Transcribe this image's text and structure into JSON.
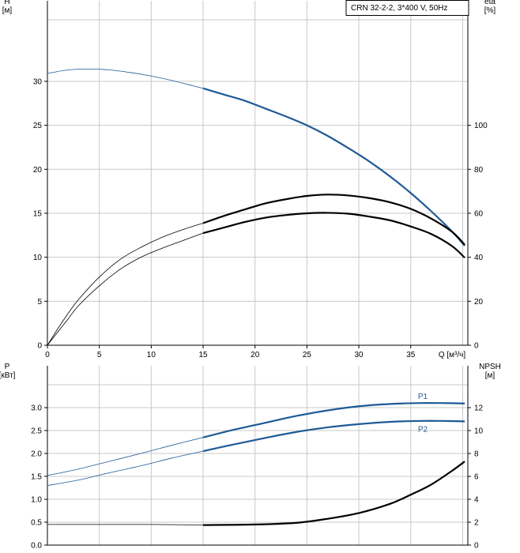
{
  "legend": "CRN 32-2-2, 3*400 V, 50Hz",
  "colors": {
    "blue": "#1f5a96",
    "black": "#000000",
    "grid": "#c8c8c8"
  },
  "chart_data": [
    {
      "type": "line",
      "name": "top",
      "xlabel": "Q [м³/ч]",
      "ylabel_left": "H\n[м]",
      "ylabel_right": "eta\n[%]",
      "xlim": [
        0,
        40.5
      ],
      "ylim_left": [
        0,
        37
      ],
      "ylim_right": [
        0,
        148
      ],
      "xticks": [
        0,
        5,
        10,
        15,
        20,
        25,
        30,
        35
      ],
      "yticks_left": [
        0,
        5,
        10,
        15,
        20,
        25,
        30
      ],
      "yticks_right": [
        0,
        20,
        40,
        60,
        80,
        100
      ],
      "duty_start_x": 15,
      "series": [
        {
          "id": "H",
          "color": "#1f5a96",
          "axis": "left",
          "points": [
            [
              0,
              30.9
            ],
            [
              2,
              31.3
            ],
            [
              4,
              31.4
            ],
            [
              6,
              31.3
            ],
            [
              8,
              31.0
            ],
            [
              10,
              30.6
            ],
            [
              12,
              30.1
            ],
            [
              14,
              29.5
            ],
            [
              15,
              29.2
            ],
            [
              17,
              28.5
            ],
            [
              19,
              27.8
            ],
            [
              21,
              26.9
            ],
            [
              23,
              26.0
            ],
            [
              25,
              25.0
            ],
            [
              27,
              23.8
            ],
            [
              29,
              22.4
            ],
            [
              31,
              20.9
            ],
            [
              33,
              19.2
            ],
            [
              35,
              17.3
            ],
            [
              37,
              15.2
            ],
            [
              39,
              12.9
            ],
            [
              40.2,
              11.3
            ]
          ]
        },
        {
          "id": "eta-upper",
          "color": "#000000",
          "axis": "right",
          "points": [
            [
              0,
              0
            ],
            [
              1,
              7.5
            ],
            [
              2,
              14.5
            ],
            [
              3,
              20.8
            ],
            [
              5,
              31
            ],
            [
              7,
              39
            ],
            [
              9,
              44.5
            ],
            [
              11,
              49
            ],
            [
              13,
              52.5
            ],
            [
              15,
              55.5
            ],
            [
              17,
              58.8
            ],
            [
              19,
              61.7
            ],
            [
              21,
              64.5
            ],
            [
              23,
              66.4
            ],
            [
              25,
              67.9
            ],
            [
              27,
              68.5
            ],
            [
              29,
              68.1
            ],
            [
              31,
              66.9
            ],
            [
              33,
              65
            ],
            [
              35,
              62
            ],
            [
              37,
              57.5
            ],
            [
              39,
              51.5
            ],
            [
              40.2,
              45.7
            ]
          ]
        },
        {
          "id": "eta-lower",
          "color": "#000000",
          "axis": "right",
          "points": [
            [
              0,
              0
            ],
            [
              1,
              6
            ],
            [
              2,
              12
            ],
            [
              3,
              18
            ],
            [
              5,
              27
            ],
            [
              7,
              34.5
            ],
            [
              9,
              40
            ],
            [
              11,
              44
            ],
            [
              13,
              47.5
            ],
            [
              15,
              51
            ],
            [
              17,
              53.5
            ],
            [
              19,
              56
            ],
            [
              21,
              58
            ],
            [
              23,
              59.2
            ],
            [
              25,
              60
            ],
            [
              27,
              60.2
            ],
            [
              29,
              59.8
            ],
            [
              31,
              58.5
            ],
            [
              33,
              56.8
            ],
            [
              35,
              54
            ],
            [
              37,
              50.5
            ],
            [
              39,
              45
            ],
            [
              40.2,
              39.8
            ]
          ]
        }
      ]
    },
    {
      "type": "line",
      "name": "bottom",
      "xlabel": "",
      "ylabel_left": "P\n[кВт]",
      "ylabel_right": "NPSH\n[м]",
      "xlim": [
        0,
        40.5
      ],
      "ylim_left": [
        0,
        3.5
      ],
      "ylim_right": [
        0,
        14
      ],
      "yticks_left": [
        0.0,
        0.5,
        1.0,
        1.5,
        2.0,
        2.5,
        3.0
      ],
      "yticks_left_labels": [
        "0.0",
        "0.5",
        "1.0",
        "1.5",
        "2.0",
        "2.5",
        "3.0"
      ],
      "yticks_right": [
        0,
        2,
        4,
        6,
        8,
        10,
        12
      ],
      "duty_start_x": 15,
      "series": [
        {
          "id": "P1",
          "name": "P1",
          "color": "#1f5a96",
          "axis": "left",
          "points": [
            [
              0,
              1.52
            ],
            [
              3,
              1.66
            ],
            [
              6,
              1.83
            ],
            [
              9,
              2.0
            ],
            [
              12,
              2.18
            ],
            [
              15,
              2.35
            ],
            [
              18,
              2.52
            ],
            [
              21,
              2.67
            ],
            [
              24,
              2.82
            ],
            [
              27,
              2.94
            ],
            [
              30,
              3.03
            ],
            [
              33,
              3.08
            ],
            [
              36,
              3.1
            ],
            [
              38,
              3.1
            ],
            [
              40.2,
              3.09
            ]
          ]
        },
        {
          "id": "P2",
          "name": "P2",
          "color": "#1f5a96",
          "axis": "left",
          "points": [
            [
              0,
              1.3
            ],
            [
              3,
              1.42
            ],
            [
              6,
              1.58
            ],
            [
              9,
              1.73
            ],
            [
              12,
              1.9
            ],
            [
              15,
              2.05
            ],
            [
              18,
              2.2
            ],
            [
              21,
              2.34
            ],
            [
              24,
              2.47
            ],
            [
              27,
              2.57
            ],
            [
              30,
              2.64
            ],
            [
              33,
              2.69
            ],
            [
              36,
              2.71
            ],
            [
              38,
              2.71
            ],
            [
              40.2,
              2.7
            ]
          ]
        },
        {
          "id": "NPSH",
          "color": "#000000",
          "axis": "right",
          "points": [
            [
              0,
              1.8
            ],
            [
              10,
              1.8
            ],
            [
              15,
              1.75
            ],
            [
              20,
              1.8
            ],
            [
              24,
              1.95
            ],
            [
              27,
              2.3
            ],
            [
              30,
              2.8
            ],
            [
              33,
              3.6
            ],
            [
              35,
              4.4
            ],
            [
              37,
              5.3
            ],
            [
              39,
              6.5
            ],
            [
              40.2,
              7.3
            ]
          ]
        }
      ]
    }
  ]
}
